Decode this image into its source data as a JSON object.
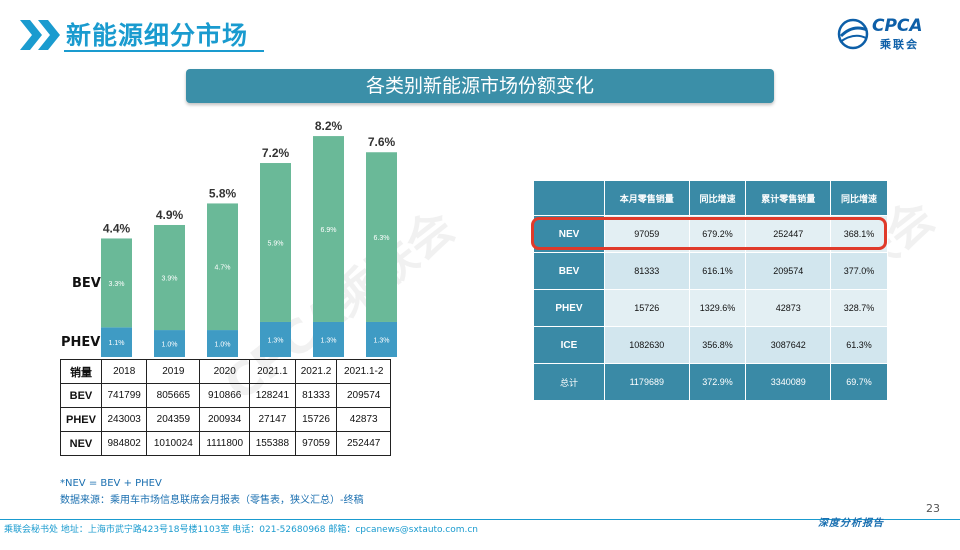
{
  "header": {
    "title": "新能源细分市场",
    "subtitle": "各类别新能源市场份额变化",
    "logo_text": "CPCA",
    "logo_cn": "乘联会"
  },
  "chart_data": {
    "type": "bar",
    "categories": [
      "2018",
      "2019",
      "2020",
      "2021.1",
      "2021.2",
      "2021.1-2"
    ],
    "series": [
      {
        "name": "PHEV",
        "values": [
          1.1,
          1.0,
          1.0,
          1.3,
          1.3,
          1.3
        ]
      },
      {
        "name": "BEV",
        "values": [
          3.3,
          3.9,
          4.7,
          5.9,
          6.9,
          6.3
        ]
      }
    ],
    "totals": [
      4.4,
      4.9,
      5.8,
      7.2,
      8.2,
      7.6
    ],
    "total_labels": [
      "4.4%",
      "4.9%",
      "5.8%",
      "7.2%",
      "8.2%",
      "7.6%"
    ],
    "phev_labels": [
      "1.1%",
      "1.0%",
      "1.0%",
      "1.3%",
      "1.3%",
      "1.3%"
    ],
    "bev_labels": [
      "3.3%",
      "3.9%",
      "4.7%",
      "5.9%",
      "6.9%",
      "6.3%"
    ],
    "ylim": [
      0,
      8.5
    ],
    "colors": {
      "BEV": "#6ab998",
      "PHEV": "#3f9bc4",
      "total_label": "#333333"
    },
    "side_labels": {
      "bev": "BEV",
      "phev": "PHEV"
    }
  },
  "left_table": {
    "header": [
      "销量",
      "2018",
      "2019",
      "2020",
      "2021.1",
      "2021.2",
      "2021.1-2"
    ],
    "rows": [
      [
        "BEV",
        "741799",
        "805665",
        "910866",
        "128241",
        "81333",
        "209574"
      ],
      [
        "PHEV",
        "243003",
        "204359",
        "200934",
        "27147",
        "15726",
        "42873"
      ],
      [
        "NEV",
        "984802",
        "1010024",
        "1111800",
        "155388",
        "97059",
        "252447"
      ]
    ]
  },
  "right_table": {
    "header": [
      "",
      "本月零售销量",
      "同比增速",
      "累计零售销量",
      "同比增速"
    ],
    "rows": [
      [
        "NEV",
        "97059",
        "679.2%",
        "252447",
        "368.1%"
      ],
      [
        "BEV",
        "81333",
        "616.1%",
        "209574",
        "377.0%"
      ],
      [
        "PHEV",
        "15726",
        "1329.6%",
        "42873",
        "328.7%"
      ],
      [
        "ICE",
        "1082630",
        "356.8%",
        "3087642",
        "61.3%"
      ],
      [
        "总计",
        "1179689",
        "372.9%",
        "3340089",
        "69.7%"
      ]
    ]
  },
  "notes": {
    "line1": "*NEV = BEV + PHEV",
    "line2": "数据来源：乘用车市场信息联席会月报表（零售表，狭义汇总）-终稿"
  },
  "footer": {
    "text": "乘联会秘书处   地址：上海市武宁路423号18号楼1103室  电话：021-52680968   邮箱：cpcanews@sxtauto.com.cn",
    "right": "深度分析报告",
    "page": "23"
  },
  "watermark": "CPCA乘联会"
}
